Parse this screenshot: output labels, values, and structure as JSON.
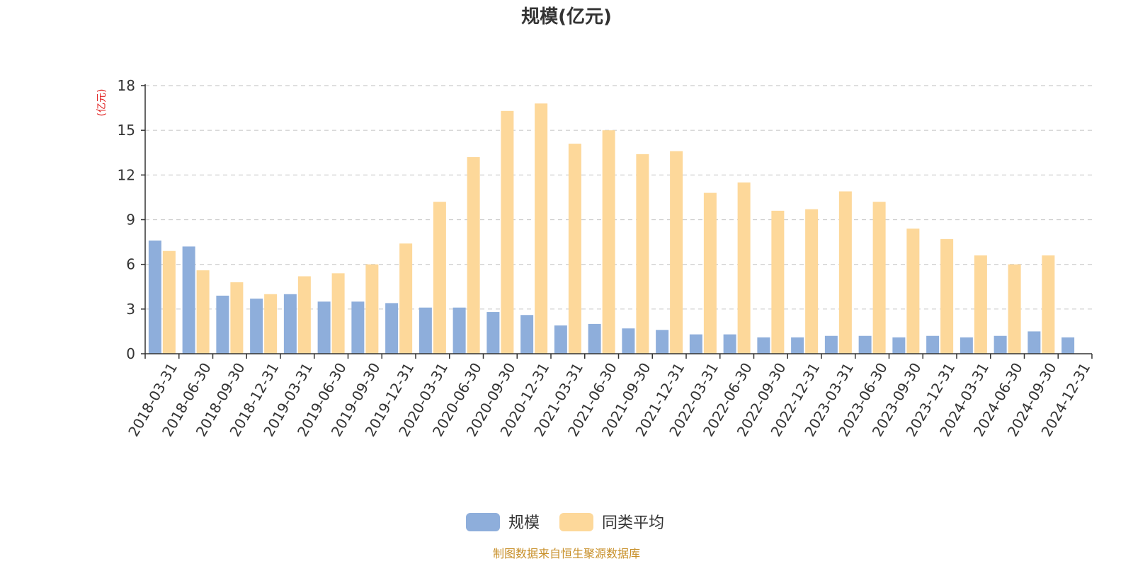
{
  "chart_data": {
    "type": "bar",
    "title": "规模(亿元)",
    "ylabel": "(亿元)",
    "xlabel": "",
    "ylim": [
      0,
      18
    ],
    "yticks": [
      0,
      3,
      6,
      9,
      12,
      15,
      18
    ],
    "grid": true,
    "legend_position": "bottom-center",
    "categories": [
      "2018-03-31",
      "2018-06-30",
      "2018-09-30",
      "2018-12-31",
      "2019-03-31",
      "2019-06-30",
      "2019-09-30",
      "2019-12-31",
      "2020-03-31",
      "2020-06-30",
      "2020-09-30",
      "2020-12-31",
      "2021-03-31",
      "2021-06-30",
      "2021-09-30",
      "2021-12-31",
      "2022-03-31",
      "2022-06-30",
      "2022-09-30",
      "2022-12-31",
      "2023-03-31",
      "2023-06-30",
      "2023-09-30",
      "2023-12-31",
      "2024-03-31",
      "2024-06-30",
      "2024-09-30",
      "2024-12-31"
    ],
    "series": [
      {
        "name": "规模",
        "color": "#8eaedb",
        "values": [
          7.6,
          7.2,
          3.9,
          3.7,
          4.0,
          3.5,
          3.5,
          3.4,
          3.1,
          3.1,
          2.8,
          2.6,
          1.9,
          2.0,
          1.7,
          1.6,
          1.3,
          1.3,
          1.1,
          1.1,
          1.2,
          1.2,
          1.1,
          1.2,
          1.1,
          1.2,
          1.5,
          1.1
        ]
      },
      {
        "name": "同类平均",
        "color": "#fdd89a",
        "values": [
          6.9,
          5.6,
          4.8,
          4.0,
          5.2,
          5.4,
          6.0,
          7.4,
          10.2,
          13.2,
          16.3,
          16.8,
          14.1,
          15.0,
          13.4,
          13.6,
          10.8,
          11.5,
          9.6,
          9.7,
          10.9,
          10.2,
          8.4,
          7.7,
          6.6,
          6.0,
          6.6,
          null
        ]
      }
    ]
  },
  "footer": {
    "source": "制图数据来自恒生聚源数据库"
  }
}
